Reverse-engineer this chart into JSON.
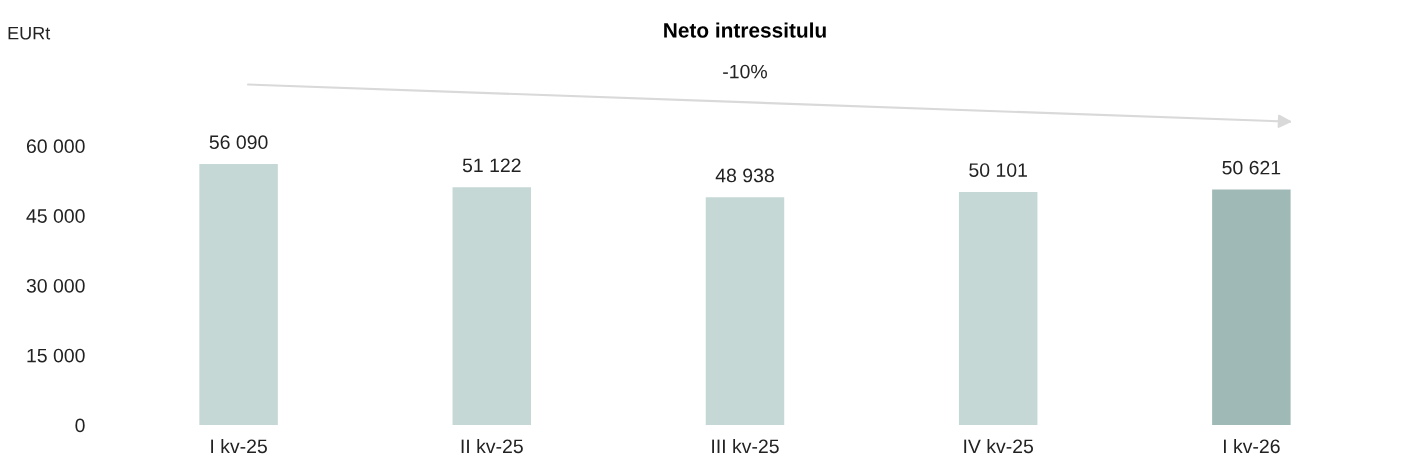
{
  "chart_data": {
    "type": "bar",
    "title": "Neto intressitulu",
    "categories": [
      "I kv-25",
      "II kv-25",
      "III kv-25",
      "IV kv-25",
      "I kv-26"
    ],
    "values": [
      56090,
      51122,
      48938,
      50101,
      50621
    ],
    "colors": [
      "#c5d8d6",
      "#c5d8d6",
      "#c5d8d6",
      "#c5d8d6",
      "#9fbab6"
    ],
    "value_labels": [
      "56 090",
      "51 122",
      "48 938",
      "50 101",
      "50 621"
    ],
    "ylim": [
      0,
      60000
    ],
    "yticks": [
      {
        "value": 0,
        "label": "0"
      },
      {
        "value": 15000,
        "label": "15 000"
      },
      {
        "value": 30000,
        "label": "30 000"
      },
      {
        "value": 45000,
        "label": "45 000"
      },
      {
        "value": 60000,
        "label": "60 000"
      }
    ],
    "annotations": [
      "EURt",
      "-10%"
    ],
    "grid": false
  }
}
